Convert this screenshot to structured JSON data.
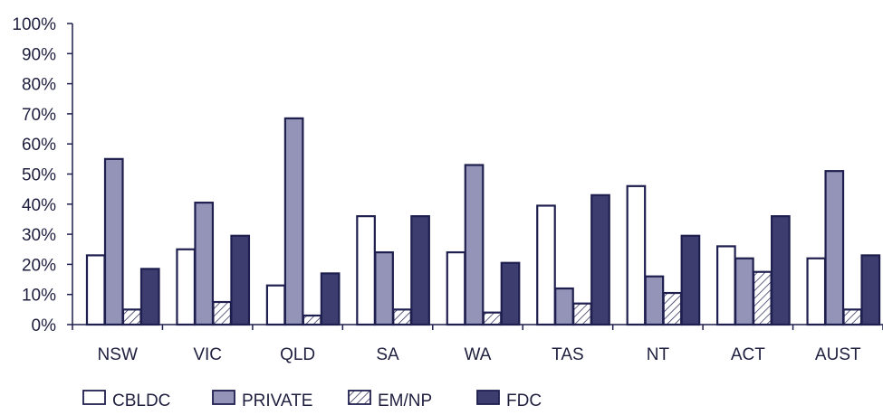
{
  "chart_data": {
    "type": "bar",
    "categories": [
      "NSW",
      "VIC",
      "QLD",
      "SA",
      "WA",
      "TAS",
      "NT",
      "ACT",
      "AUST"
    ],
    "series": [
      {
        "name": "CBLDC",
        "values": [
          23,
          25,
          13,
          36,
          24,
          39.5,
          46,
          26,
          22
        ],
        "fill": "#ffffff",
        "pattern": "none"
      },
      {
        "name": "PRIVATE",
        "values": [
          55,
          40.5,
          68.5,
          24,
          53,
          12,
          16,
          22,
          51
        ],
        "fill": "#9394b8",
        "pattern": "none"
      },
      {
        "name": "EM/NP",
        "values": [
          5,
          7.5,
          3,
          5,
          4,
          7,
          10.5,
          17.5,
          5
        ],
        "fill": "#ffffff",
        "pattern": "hatch"
      },
      {
        "name": "FDC",
        "values": [
          18.5,
          29.5,
          17,
          36,
          20.5,
          43,
          29.5,
          36,
          23
        ],
        "fill": "#3d3d70",
        "pattern": "none"
      }
    ],
    "ylim": [
      0,
      100
    ],
    "yticks": [
      "0%",
      "10%",
      "20%",
      "30%",
      "40%",
      "50%",
      "60%",
      "70%",
      "80%",
      "90%",
      "100%"
    ],
    "grid": false,
    "legend_position": "bottom",
    "colors": {
      "outline": "#1f1f4f",
      "axis": "#1f1f4f"
    }
  }
}
